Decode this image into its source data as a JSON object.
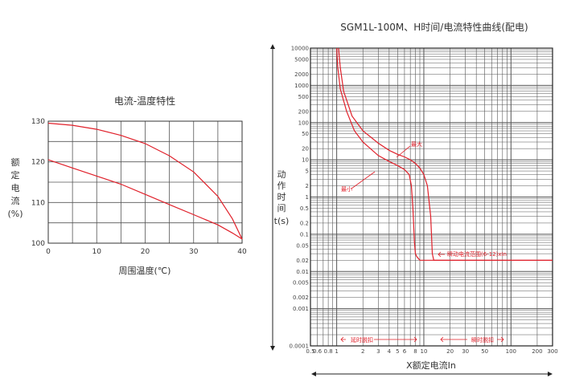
{
  "chart_data": [
    {
      "type": "line",
      "title": "电流-温度特性",
      "xlabel": "周围温度(℃)",
      "ylabel_chars": [
        "额",
        "定",
        "电",
        "流",
        "(%)"
      ],
      "x_ticks": [
        0,
        10,
        20,
        30,
        40
      ],
      "y_ticks": [
        100,
        110,
        120,
        130
      ],
      "xlim": [
        0,
        40
      ],
      "ylim": [
        100,
        130
      ],
      "grid": true,
      "series": [
        {
          "x": [
            0,
            5,
            10,
            15,
            20,
            25,
            30,
            35,
            38,
            40
          ],
          "y": [
            129.5,
            129,
            128,
            126.5,
            124.5,
            121.5,
            117.5,
            111.5,
            106,
            101
          ]
        },
        {
          "x": [
            0,
            5,
            10,
            15,
            20,
            25,
            30,
            35,
            38,
            40
          ],
          "y": [
            120.5,
            118.5,
            116.5,
            114.5,
            112,
            109.5,
            107,
            104.5,
            102.5,
            101
          ]
        }
      ],
      "colors": {
        "curve": "#e0202a",
        "grid": "#555555"
      }
    },
    {
      "type": "line",
      "title": "SGM1L-100M、H时间/电流特性曲线(配电)",
      "xlabel": "X额定电流In",
      "ylabel_chars": [
        "动",
        "作",
        "时",
        "间"
      ],
      "ylabel_unit": "t(s)",
      "x_scale": "log",
      "y_scale": "log",
      "xlim": [
        0.5,
        300
      ],
      "ylim": [
        0.0001,
        10000
      ],
      "x_tick_labels": [
        "0.5",
        "0.6",
        "0.8",
        "1",
        "2",
        "3",
        "4",
        "5",
        "6",
        "8",
        "10",
        "20",
        "30",
        "50",
        "100",
        "200",
        "300"
      ],
      "y_tick_labels": [
        "10000",
        "5000",
        "2000",
        "1000",
        "500",
        "200",
        "100",
        "50",
        "20",
        "10",
        "5",
        "2",
        "1",
        "0.5",
        "0.2",
        "0.1",
        "0.05",
        "0.02",
        "0.01",
        "0.005",
        "0.002",
        "0.001",
        "0.0001"
      ],
      "grid": true,
      "series": [
        {
          "name": "最大",
          "x": [
            1.05,
            1.1,
            1.2,
            1.5,
            2,
            3,
            4,
            5,
            6,
            7,
            8,
            9,
            10,
            11,
            12,
            12.5,
            13,
            20,
            50,
            100,
            300
          ],
          "y": [
            10000,
            3000,
            700,
            150,
            60,
            28,
            18,
            14,
            12,
            10,
            8,
            6,
            4,
            2,
            0.3,
            0.03,
            0.02,
            0.02,
            0.02,
            0.02,
            0.02
          ]
        },
        {
          "name": "最小",
          "x": [
            1.0,
            1.03,
            1.1,
            1.3,
            1.6,
            2,
            3,
            4,
            5,
            6,
            6.8,
            7.2,
            7.5,
            7.8,
            8,
            8.3,
            9,
            10,
            20,
            50,
            100,
            300
          ],
          "y": [
            10000,
            3000,
            800,
            200,
            60,
            30,
            13,
            9,
            7,
            5.5,
            4,
            2,
            0.5,
            0.06,
            0.03,
            0.025,
            0.02,
            0.02,
            0.02,
            0.02,
            0.02,
            0.02
          ]
        }
      ],
      "annotations": {
        "max_label": "最大",
        "min_label": "最小",
        "instant_range": "瞬动电流范围(6-12)xIn",
        "delay_trip": "延时脱扣",
        "instant_trip": "瞬时脱扣"
      },
      "colors": {
        "curve": "#e0202a",
        "grid": "#555555",
        "frame": "#222222"
      }
    }
  ]
}
